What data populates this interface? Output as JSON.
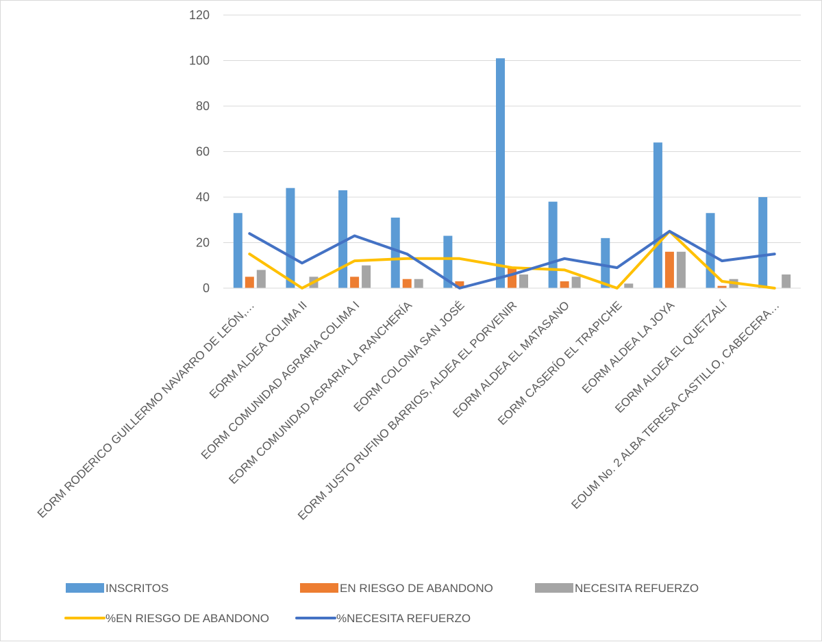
{
  "chart_data": {
    "type": "bar",
    "categories": [
      "EORM RODERICO GUILLERMO NAVARRO DE LEÓN,…",
      "EORM ALDEA COLIMA II",
      "EORM COMUNIDAD AGRARIA COLIMA I",
      "EORM COMUNIDAD AGRARIA LA RANCHERÍA",
      "EORM COLONIA SAN JOSÉ",
      "EORM JUSTO RUFINO BARRIOS, ALDEA EL PORVENIR",
      "EORM ALDEA EL MATASANO",
      "EORM CASERÍO EL TRAPICHE",
      "EORM ALDEA LA JOYA",
      "EORM ALDEA EL QUETZALÍ",
      "EOUM No. 2 ALBA TERESA CASTILLO, CABECERA…"
    ],
    "series": [
      {
        "name": "INSCRITOS",
        "kind": "bar",
        "color": "#5b9bd5",
        "values": [
          33,
          44,
          43,
          31,
          23,
          101,
          38,
          22,
          64,
          33,
          40
        ]
      },
      {
        "name": "EN RIESGO DE ABANDONO",
        "kind": "bar",
        "color": "#ed7d31",
        "values": [
          5,
          0,
          5,
          4,
          3,
          9,
          3,
          0,
          16,
          1,
          0
        ]
      },
      {
        "name": "NECESITA REFUERZO",
        "kind": "bar",
        "color": "#a5a5a5",
        "values": [
          8,
          5,
          10,
          4,
          0,
          6,
          5,
          2,
          16,
          4,
          6
        ]
      },
      {
        "name": "%EN RIESGO DE ABANDONO",
        "kind": "line",
        "color": "#ffc000",
        "values": [
          15,
          0,
          12,
          13,
          13,
          9,
          8,
          0,
          25,
          3,
          0
        ]
      },
      {
        "name": "%NECESITA REFUERZO",
        "kind": "line",
        "color": "#4472c4",
        "values": [
          24,
          11,
          23,
          15,
          0,
          6,
          13,
          9,
          25,
          12,
          15
        ]
      }
    ],
    "ylim": [
      0,
      120
    ],
    "yticks": [
      "0",
      "20",
      "40",
      "60",
      "80",
      "100",
      "120"
    ],
    "grid": true,
    "legend_position": "bottom"
  }
}
